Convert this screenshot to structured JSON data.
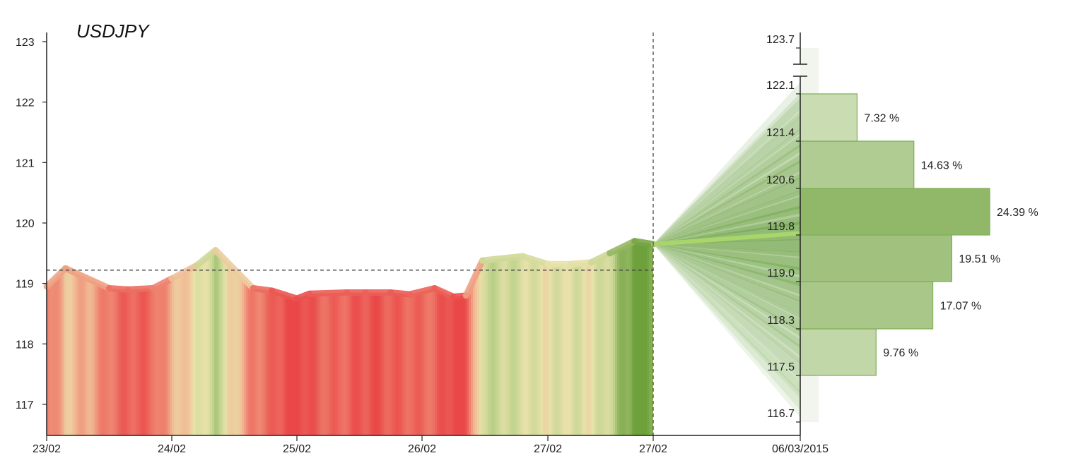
{
  "chart_data": {
    "type": "area",
    "title": "USDJPY",
    "y_axis": {
      "ylim": [
        116.5,
        123.15
      ],
      "ticks": [
        117,
        118,
        119,
        120,
        121,
        122,
        123
      ],
      "tick_labels": [
        "117",
        "118",
        "119",
        "120",
        "121",
        "122",
        "123"
      ]
    },
    "x_axis": {
      "tick_labels": [
        "23/02",
        "24/02",
        "25/02",
        "26/02",
        "27/02",
        "27/02",
        "06/03/2015"
      ],
      "tick_positions": [
        0,
        1,
        2,
        3,
        4,
        4.85,
        6.3
      ]
    },
    "reference_line": {
      "y": 119.22,
      "style": "dashed"
    },
    "forecast_start": {
      "x": 4.85,
      "y": 119.65,
      "style": "dashed-vertical"
    },
    "series": [
      {
        "x": [
          0,
          0.15,
          0.5,
          0.65,
          0.85,
          1,
          1.2,
          1.35,
          1.65,
          1.8,
          2,
          2.1,
          2.4,
          2.55,
          2.75,
          2.9,
          3.1,
          3.25,
          3.35,
          3.48,
          3.8,
          4,
          4.18,
          4.35,
          4.5,
          4.7,
          4.85
        ],
        "y": [
          118.95,
          119.25,
          118.92,
          118.9,
          118.92,
          119.08,
          119.3,
          119.55,
          118.92,
          118.88,
          118.75,
          118.83,
          118.85,
          118.85,
          118.85,
          118.82,
          118.92,
          118.78,
          118.8,
          119.38,
          119.45,
          119.32,
          119.32,
          119.35,
          119.5,
          119.7,
          119.65
        ]
      }
    ],
    "forecast": {
      "end_label": "06/03/2015",
      "median_end": 119.83,
      "fan_range": [
        117.0,
        122.1
      ]
    },
    "histogram": {
      "tick_labels": [
        "116.7",
        "117.5",
        "118.3",
        "119.0",
        "119.8",
        "120.6",
        "121.4",
        "122.1",
        "123.7"
      ],
      "bins": [
        {
          "from": 117.5,
          "to": 118.3,
          "label": "9.76 %",
          "value": 9.76
        },
        {
          "from": 118.3,
          "to": 119.0,
          "label": "17.07 %",
          "value": 17.07
        },
        {
          "from": 119.0,
          "to": 119.8,
          "label": "19.51 %",
          "value": 19.51
        },
        {
          "from": 119.8,
          "to": 120.6,
          "label": "24.39 %",
          "value": 24.39
        },
        {
          "from": 120.6,
          "to": 121.4,
          "label": "14.63 %",
          "value": 14.63
        },
        {
          "from": 121.4,
          "to": 122.1,
          "label": "7.32 %",
          "value": 7.32
        }
      ]
    }
  }
}
